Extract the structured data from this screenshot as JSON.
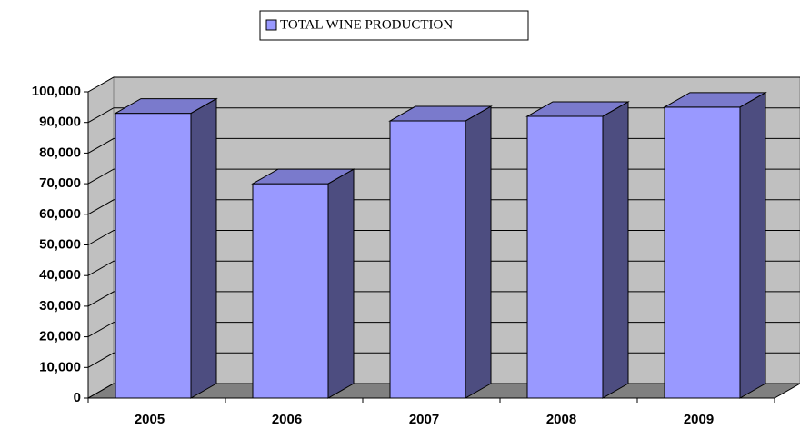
{
  "chart_data": {
    "type": "bar3d",
    "categories": [
      "2005",
      "2006",
      "2007",
      "2008",
      "2009"
    ],
    "series": [
      {
        "name": "TOTAL WINE PRODUCTION",
        "color": "#9999ff",
        "values": [
          93000,
          70000,
          90500,
          92000,
          95000
        ]
      }
    ],
    "ylim": [
      0,
      100000
    ],
    "yticks": [
      0,
      {
        "value": 10000,
        "label": "10,000"
      },
      {
        "value": 20000,
        "label": "20,000"
      },
      {
        "value": 30000,
        "label": "30,000"
      },
      {
        "value": 40000,
        "label": "40,000"
      },
      {
        "value": 50000,
        "label": "50,000"
      },
      {
        "value": 60000,
        "label": "60,000"
      },
      {
        "value": 70000,
        "label": "70,000"
      },
      {
        "value": 80000,
        "label": "80,000"
      },
      {
        "value": 90000,
        "label": "90,000"
      },
      {
        "value": 100000,
        "label": "100,000"
      }
    ],
    "grid": true,
    "legend": "top"
  }
}
